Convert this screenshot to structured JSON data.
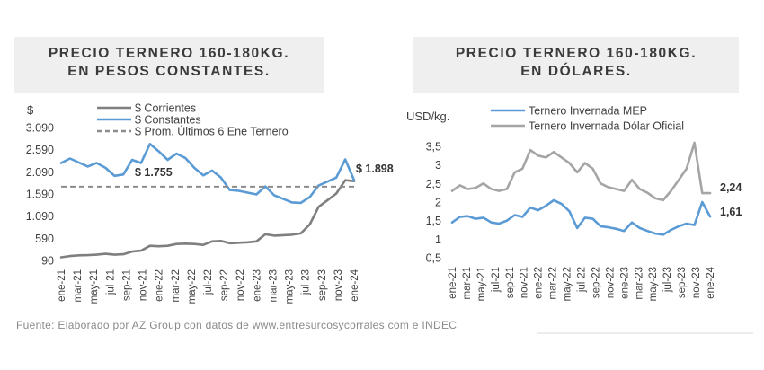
{
  "colors": {
    "blue": "#5b9bd5",
    "darkgray": "#7f7f7f",
    "lightgray": "#a5a5a5",
    "dashed": "#8c8c8c",
    "text": "#3a3a3a"
  },
  "source": "Fuente: Elaborado por AZ Group con datos de www.entresurcosycorrales.com e INDEC",
  "chart_data": [
    {
      "type": "line",
      "title_lines": [
        "PRECIO TERNERO 160-180KG.",
        "EN PESOS CONSTANTES."
      ],
      "ylabel": "$",
      "yticks": [
        "90",
        "590",
        "1.090",
        "1.590",
        "2.090",
        "2.590",
        "3.090"
      ],
      "ylim": [
        90,
        3090
      ],
      "xticks": [
        "ene-21",
        "mar-21",
        "may-21",
        "jul-21",
        "sep-21",
        "nov-21",
        "ene-22",
        "mar-22",
        "may-22",
        "jul-22",
        "sep-22",
        "nov-22",
        "ene-23",
        "mar-23",
        "may-23",
        "jul-23",
        "sep-23",
        "nov-23",
        "ene-24"
      ],
      "series": [
        {
          "name": "$ Corrientes",
          "color": "#7f7f7f",
          "values": [
            160,
            190,
            205,
            210,
            220,
            240,
            220,
            230,
            290,
            310,
            420,
            410,
            420,
            460,
            470,
            460,
            440,
            520,
            530,
            480,
            490,
            500,
            520,
            680,
            650,
            660,
            670,
            700,
            900,
            1300,
            1450,
            1600,
            1900,
            1880
          ]
        },
        {
          "name": "$ Constantes",
          "color": "#5b9bd5",
          "values": [
            2290,
            2390,
            2300,
            2210,
            2290,
            2180,
            2000,
            2030,
            2360,
            2290,
            2720,
            2550,
            2360,
            2500,
            2400,
            2180,
            2010,
            2120,
            1960,
            1680,
            1660,
            1620,
            1580,
            1760,
            1560,
            1480,
            1400,
            1390,
            1520,
            1780,
            1870,
            1960,
            2370,
            1898
          ]
        },
        {
          "name": "$ Prom. Últimos 6 Ene Ternero",
          "color": "#8c8c8c",
          "dashed": true,
          "constant": 1755
        }
      ],
      "annotations": [
        "$ 1.755",
        "$ 1.898"
      ]
    },
    {
      "type": "line",
      "title_lines": [
        "PRECIO TERNERO 160-180KG.",
        "EN DÓLARES."
      ],
      "ylabel": "USD/kg.",
      "yticks": [
        "0,5",
        "1",
        "1,5",
        "2",
        "2,5",
        "3",
        "3,5"
      ],
      "ylim": [
        0.5,
        3.5
      ],
      "xticks": [
        "ene-21",
        "mar-21",
        "may-21",
        "jul-21",
        "sep-21",
        "nov-21",
        "ene-22",
        "mar-22",
        "may-22",
        "jul-22",
        "sep-22",
        "nov-22",
        "ene-23",
        "mar-23",
        "may-23",
        "jul-23",
        "sep-23",
        "nov-23",
        "ene-24"
      ],
      "series": [
        {
          "name": "Ternero Invernada MEP",
          "color": "#5b9bd5",
          "values": [
            1.45,
            1.6,
            1.62,
            1.55,
            1.58,
            1.45,
            1.42,
            1.5,
            1.65,
            1.6,
            1.85,
            1.78,
            1.9,
            2.05,
            1.95,
            1.75,
            1.3,
            1.58,
            1.55,
            1.35,
            1.32,
            1.28,
            1.22,
            1.45,
            1.3,
            1.22,
            1.15,
            1.12,
            1.25,
            1.35,
            1.42,
            1.38,
            2.0,
            1.61
          ]
        },
        {
          "name": "Ternero Invernada Dólar Oficial",
          "color": "#a5a5a5",
          "values": [
            2.3,
            2.45,
            2.35,
            2.38,
            2.5,
            2.35,
            2.3,
            2.35,
            2.8,
            2.9,
            3.4,
            3.25,
            3.2,
            3.35,
            3.2,
            3.05,
            2.8,
            3.05,
            2.9,
            2.5,
            2.4,
            2.35,
            2.3,
            2.6,
            2.35,
            2.25,
            2.1,
            2.05,
            2.3,
            2.6,
            2.9,
            3.6,
            2.24,
            2.24
          ]
        }
      ],
      "annotations": [
        "2,24",
        "1,61"
      ]
    }
  ]
}
